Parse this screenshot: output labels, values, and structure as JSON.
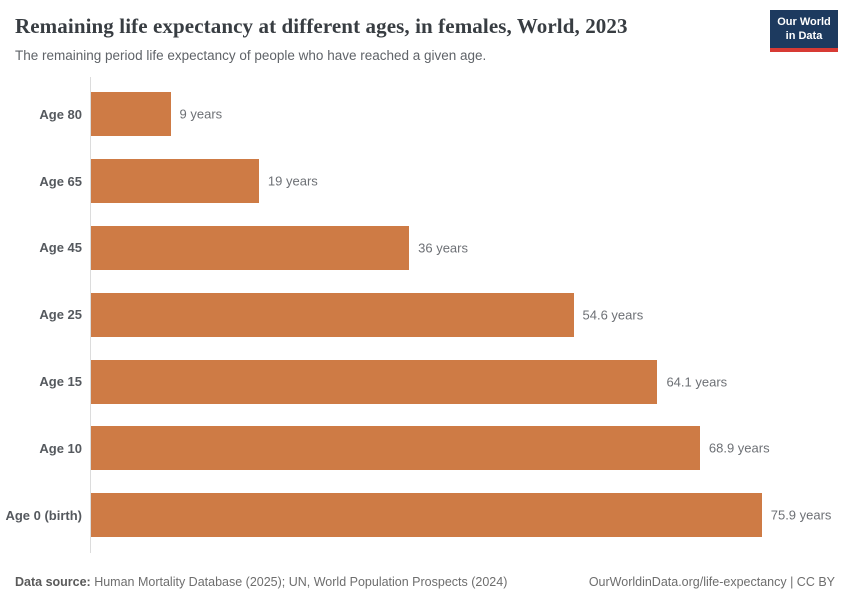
{
  "header": {
    "title": "Remaining life expectancy at different ages, in females, World, 2023",
    "subtitle": "The remaining period life expectancy of people who have reached a given age.",
    "logo": {
      "line1": "Our World",
      "line2": "in Data",
      "bg_color": "#1d3a5f",
      "accent_color": "#d73a34"
    }
  },
  "chart_data": {
    "type": "bar",
    "orientation": "horizontal",
    "title": "Remaining life expectancy at different ages, in females, World, 2023",
    "subtitle": "The remaining period life expectancy of people who have reached a given age.",
    "categories": [
      "Age 80",
      "Age 65",
      "Age 45",
      "Age 25",
      "Age 15",
      "Age 10",
      "Age 0 (birth)"
    ],
    "values": [
      9,
      19,
      36,
      54.6,
      64.1,
      68.9,
      75.9
    ],
    "value_labels": [
      "9 years",
      "19 years",
      "36 years",
      "54.6 years",
      "64.1 years",
      "68.9 years",
      "75.9 years"
    ],
    "unit": "years",
    "bar_color": "#ce7b45",
    "xlim": [
      0,
      86
    ],
    "grid": false,
    "legend": false
  },
  "footer": {
    "source_label": "Data source:",
    "source_text": " Human Mortality Database (2025); UN, World Population Prospects (2024)",
    "attribution": "OurWorldinData.org/life-expectancy | CC BY"
  }
}
